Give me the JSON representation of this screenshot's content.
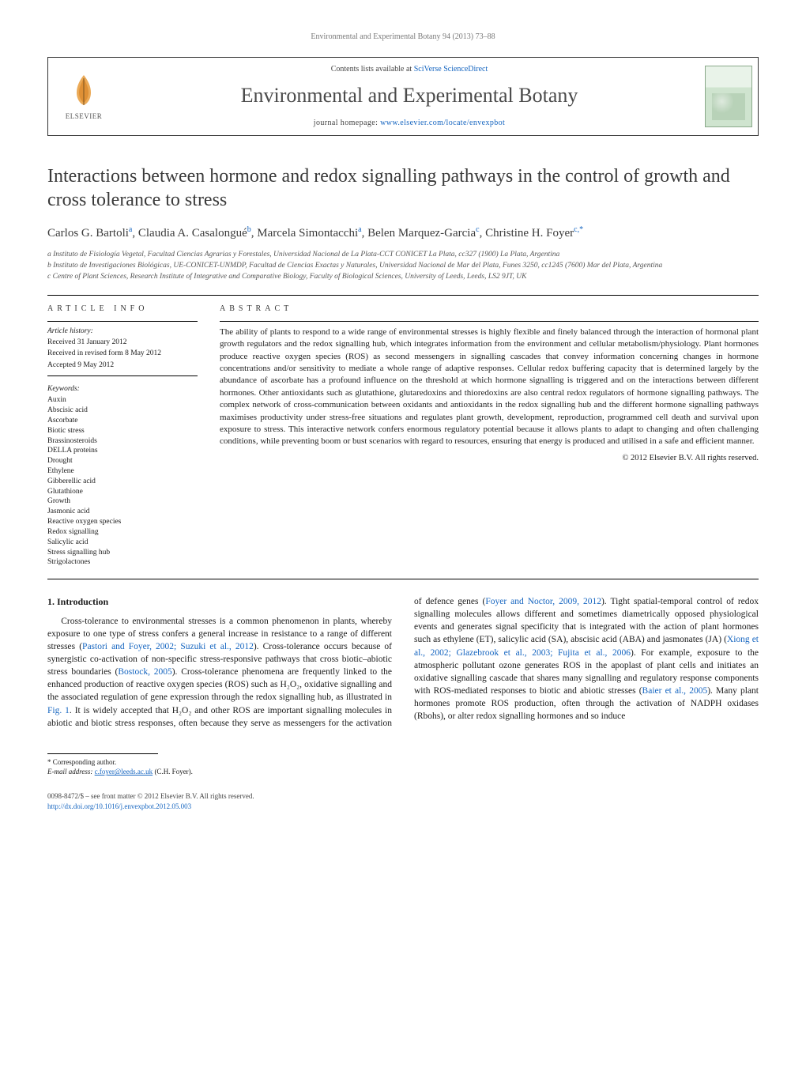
{
  "running_head": "Environmental and Experimental Botany 94 (2013) 73–88",
  "header": {
    "publisher": "ELSEVIER",
    "contents_prefix": "Contents lists available at ",
    "contents_link": "SciVerse ScienceDirect",
    "journal": "Environmental and Experimental Botany",
    "homepage_prefix": "journal homepage: ",
    "homepage_url": "www.elsevier.com/locate/envexpbot"
  },
  "article": {
    "title": "Interactions between hormone and redox signalling pathways in the control of growth and cross tolerance to stress",
    "authors_html": "Carlos G. Bartoli<sup>a</sup>, Claudia A. Casalongué<sup>b</sup>, Marcela Simontacchi<sup>a</sup>, Belen Marquez-Garcia<sup>c</sup>, Christine H. Foyer<sup>c,*</sup>",
    "affiliations": [
      "a Instituto de Fisiología Vegetal, Facultad Ciencias Agrarias y Forestales, Universidad Nacional de La Plata-CCT CONICET La Plata, cc327 (1900) La Plata, Argentina",
      "b Instituto de Investigaciones Biológicas, UE-CONICET-UNMDP, Facultad de Ciencias Exactas y Naturales, Universidad Nacional de Mar del Plata, Funes 3250, cc1245 (7600) Mar del Plata, Argentina",
      "c Centre of Plant Sciences, Research Institute of Integrative and Comparative Biology, Faculty of Biological Sciences, University of Leeds, Leeds, LS2 9JT, UK"
    ]
  },
  "info": {
    "label": "ARTICLE INFO",
    "history_label": "Article history:",
    "history": [
      "Received 31 January 2012",
      "Received in revised form 8 May 2012",
      "Accepted 9 May 2012"
    ],
    "keywords_label": "Keywords:",
    "keywords": [
      "Auxin",
      "Abscisic acid",
      "Ascorbate",
      "Biotic stress",
      "Brassinosteroids",
      "DELLA proteins",
      "Drought",
      "Ethylene",
      "Gibberellic acid",
      "Glutathione",
      "Growth",
      "Jasmonic acid",
      "Reactive oxygen species",
      "Redox signalling",
      "Salicylic acid",
      "Stress signalling hub",
      "Strigolactones"
    ]
  },
  "abstract": {
    "label": "ABSTRACT",
    "text": "The ability of plants to respond to a wide range of environmental stresses is highly flexible and finely balanced through the interaction of hormonal plant growth regulators and the redox signalling hub, which integrates information from the environment and cellular metabolism/physiology. Plant hormones produce reactive oxygen species (ROS) as second messengers in signalling cascades that convey information concerning changes in hormone concentrations and/or sensitivity to mediate a whole range of adaptive responses. Cellular redox buffering capacity that is determined largely by the abundance of ascorbate has a profound influence on the threshold at which hormone signalling is triggered and on the interactions between different hormones. Other antioxidants such as glutathione, glutaredoxins and thioredoxins are also central redox regulators of hormone signalling pathways. The complex network of cross-communication between oxidants and antioxidants in the redox signalling hub and the different hormone signalling pathways maximises productivity under stress-free situations and regulates plant growth, development, reproduction, programmed cell death and survival upon exposure to stress. This interactive network confers enormous regulatory potential because it allows plants to adapt to changing and often challenging conditions, while preventing boom or bust scenarios with regard to resources, ensuring that energy is produced and utilised in a safe and efficient manner.",
    "copyright": "© 2012 Elsevier B.V. All rights reserved."
  },
  "body": {
    "section_heading": "1.  Introduction",
    "para1_pre": "Cross-tolerance to environmental stresses is a common phenomenon in plants, whereby exposure to one type of stress confers a general increase in resistance to a range of different stresses (",
    "ref1": "Pastori and Foyer, 2002; Suzuki et al., 2012",
    "para1_mid1": "). Cross-tolerance occurs because of synergistic co-activation of non-specific stress-responsive pathways that cross biotic–abiotic stress boundaries (",
    "ref2": "Bostock, 2005",
    "para1_mid2": "). Cross-tolerance phenomena are frequently linked to the enhanced production of reactive oxygen species (ROS) such as H₂O₂, oxidative signalling and the associated regulation of gene expression through the redox signalling hub, as illustrated in ",
    "ref3": "Fig. 1",
    "para1_end": ".",
    "para2_pre": "It is widely accepted that H₂O₂ and other ROS are important signalling molecules in abiotic and biotic stress responses, often because they serve as messengers for the activation of defence genes (",
    "ref4": "Foyer and Noctor, 2009, 2012",
    "para2_mid1": "). Tight spatial-temporal control of redox signalling molecules allows different and sometimes diametrically opposed physiological events and generates signal specificity that is integrated with the action of plant hormones such as ethylene (ET), salicylic acid (SA), abscisic acid (ABA) and jasmonates (JA) (",
    "ref5": "Xiong et al., 2002; Glazebrook et al., 2003; Fujita et al., 2006",
    "para2_mid2": "). For example, exposure to the atmospheric pollutant ozone generates ROS in the apoplast of plant cells and initiates an oxidative signalling cascade that shares many signalling and regulatory response components with ROS-mediated responses to biotic and abiotic stresses (",
    "ref6": "Baier et al., 2005",
    "para2_end": "). Many plant hormones promote ROS production, often through the activation of NADPH oxidases (Rbohs), or alter redox signalling hormones and so induce"
  },
  "footnotes": {
    "corr_label": "* Corresponding author.",
    "email_label": "E-mail address:",
    "email": "c.foyer@leeds.ac.uk",
    "email_suffix": "(C.H. Foyer)."
  },
  "footer": {
    "line1": "0098-8472/$ – see front matter © 2012 Elsevier B.V. All rights reserved.",
    "doi": "http://dx.doi.org/10.1016/j.envexpbot.2012.05.003"
  },
  "colors": {
    "link": "#1565c0",
    "text": "#1a1a1a",
    "muted": "#555555",
    "rule": "#000000"
  }
}
